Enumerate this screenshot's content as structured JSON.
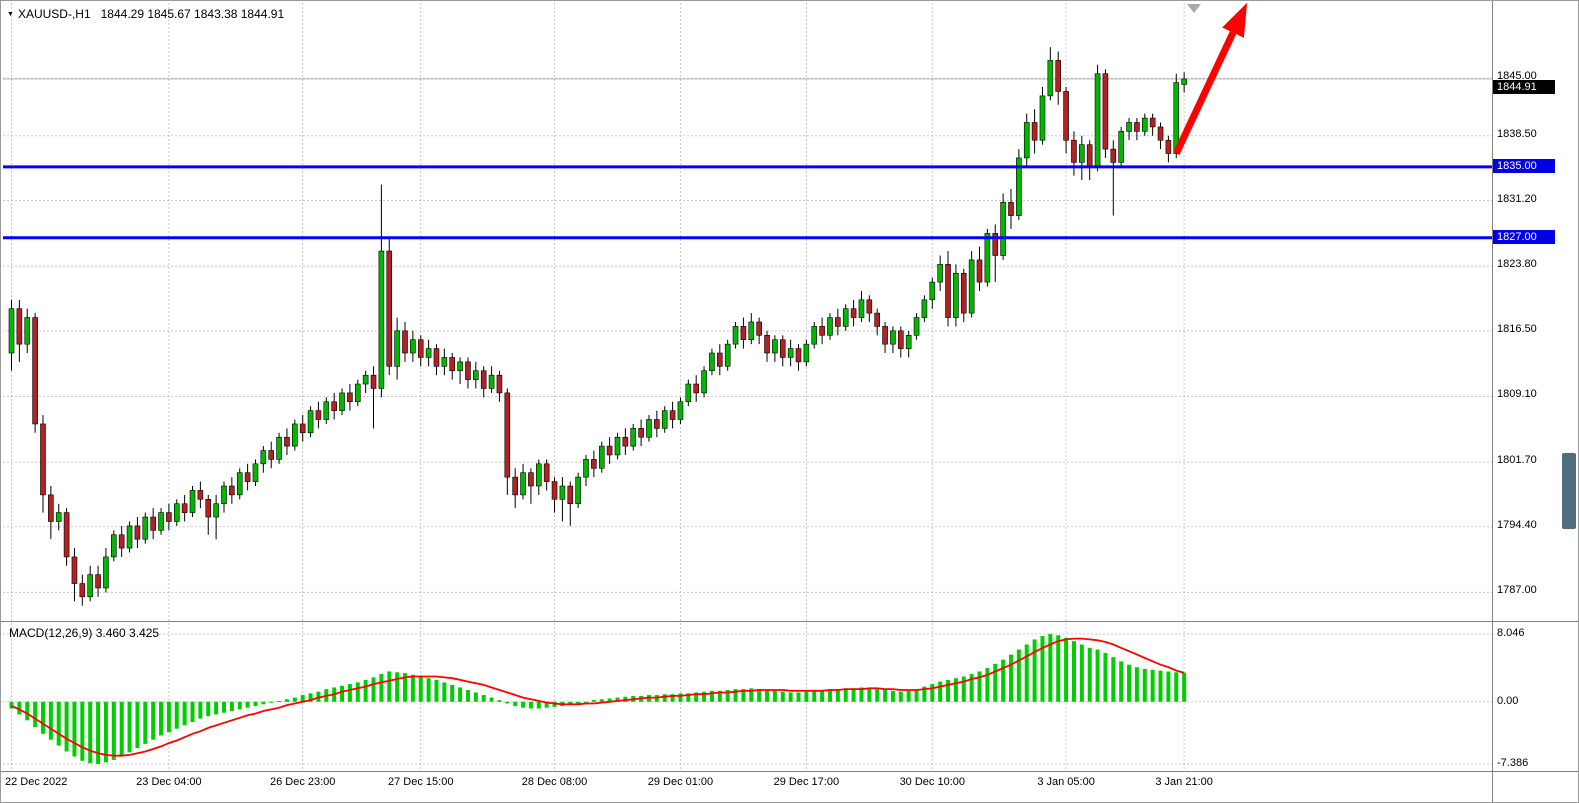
{
  "header": {
    "symbol_timeframe": "XAUUSD-,H1",
    "ohlc_text": "1844.29 1845.67 1843.38 1844.91"
  },
  "price_axis": {
    "ticks": [
      "1845.00",
      "1838.50",
      "1831.20",
      "1823.80",
      "1816.50",
      "1809.10",
      "1801.70",
      "1794.40",
      "1787.00"
    ],
    "current_price_label": "1844.91",
    "level_tags": [
      "1835.00",
      "1827.00"
    ]
  },
  "macd_panel": {
    "label": "MACD(12,26,9) 3.460 3.425",
    "ticks": [
      "8.046",
      "0.00",
      "-7.386"
    ]
  },
  "colors": {
    "background": "#FFFFFF",
    "grid": "#C8C8C8",
    "bull": "#00B800",
    "bear": "#B22222",
    "wick": "#000000",
    "hline": "#0000FF",
    "macd_histogram": "#00CE00",
    "macd_signal": "#FF0000",
    "arrow": "#FF0000",
    "current_price_line": "#B8B8B8",
    "current_price_tag_bg": "#000000",
    "level_tag_bg": "#0000E6",
    "separator": "#808080",
    "scrollbar_thumb": "#4E6E7E",
    "shift_marker": "#AAAAAA"
  },
  "chart_data": {
    "type": "candlestick",
    "symbol": "XAUUSD-",
    "timeframe": "H1",
    "title": "XAUUSD-,H1",
    "ylim": [
      1784.0,
      1852.8
    ],
    "y_ticks": [
      1845.0,
      1838.5,
      1831.2,
      1823.8,
      1816.5,
      1809.1,
      1801.7,
      1794.4,
      1787.0
    ],
    "current_price": 1844.91,
    "last_bar": {
      "open": 1844.29,
      "high": 1845.67,
      "low": 1843.38,
      "close": 1844.91
    },
    "hlines": [
      {
        "price": 1835.0,
        "label": "1835.00"
      },
      {
        "price": 1827.0,
        "label": "1827.00"
      }
    ],
    "time_labels": [
      {
        "i": 0,
        "t": "22 Dec 2022"
      },
      {
        "i": 20,
        "t": "23 Dec 04:00"
      },
      {
        "i": 37,
        "t": "26 Dec 23:00"
      },
      {
        "i": 52,
        "t": "27 Dec 15:00"
      },
      {
        "i": 69,
        "t": "28 Dec 08:00"
      },
      {
        "i": 85,
        "t": "29 Dec 01:00"
      },
      {
        "i": 101,
        "t": "29 Dec 17:00"
      },
      {
        "i": 117,
        "t": "30 Dec 10:00"
      },
      {
        "i": 134,
        "t": "3 Jan 05:00"
      },
      {
        "i": 149,
        "t": "3 Jan 21:00"
      }
    ],
    "annotations": [
      {
        "type": "arrow",
        "from": {
          "bar": 148,
          "price": 1836.5
        },
        "to": {
          "bar": 157,
          "price": 1853.5
        }
      }
    ],
    "ohlc": [
      [
        1814,
        1820,
        1812,
        1819
      ],
      [
        1819,
        1820,
        1813,
        1815
      ],
      [
        1815,
        1819,
        1814,
        1818
      ],
      [
        1818,
        1818.5,
        1805,
        1806
      ],
      [
        1806,
        1807,
        1796,
        1798
      ],
      [
        1798,
        1799,
        1793,
        1795
      ],
      [
        1795,
        1797,
        1794,
        1796
      ],
      [
        1796,
        1796.5,
        1790,
        1791
      ],
      [
        1791,
        1792,
        1786,
        1788
      ],
      [
        1788,
        1789,
        1785.5,
        1786.5
      ],
      [
        1786.5,
        1790,
        1786,
        1789
      ],
      [
        1789,
        1790,
        1786.5,
        1787.5
      ],
      [
        1787.5,
        1792,
        1787,
        1791
      ],
      [
        1791,
        1794,
        1790.5,
        1793.5
      ],
      [
        1793.5,
        1794.5,
        1791,
        1792
      ],
      [
        1792,
        1795,
        1791.5,
        1794.5
      ],
      [
        1794.5,
        1795.5,
        1792,
        1793
      ],
      [
        1793,
        1796,
        1792.5,
        1795.5
      ],
      [
        1795.5,
        1796.5,
        1793,
        1794
      ],
      [
        1794,
        1796.5,
        1793.5,
        1796
      ],
      [
        1796,
        1797,
        1794,
        1795
      ],
      [
        1795,
        1797.5,
        1794.5,
        1797
      ],
      [
        1797,
        1798,
        1795,
        1796
      ],
      [
        1796,
        1799,
        1795.5,
        1798.5
      ],
      [
        1798.5,
        1799.5,
        1796.5,
        1797.5
      ],
      [
        1797.5,
        1798,
        1793.5,
        1795.5
      ],
      [
        1795.5,
        1798,
        1793,
        1797
      ],
      [
        1797,
        1799.5,
        1796,
        1799
      ],
      [
        1799,
        1800,
        1797,
        1798
      ],
      [
        1798,
        1801,
        1797.5,
        1800.5
      ],
      [
        1800.5,
        1801.5,
        1798.5,
        1799.5
      ],
      [
        1799.5,
        1802,
        1799,
        1801.5
      ],
      [
        1801.5,
        1803.5,
        1800.5,
        1803
      ],
      [
        1803,
        1804,
        1801,
        1802
      ],
      [
        1802,
        1805,
        1801.5,
        1804.5
      ],
      [
        1804.5,
        1805.5,
        1802.5,
        1803.5
      ],
      [
        1803.5,
        1806.5,
        1803,
        1806
      ],
      [
        1806,
        1807,
        1804,
        1805
      ],
      [
        1805,
        1808,
        1804.5,
        1807.5
      ],
      [
        1807.5,
        1808.5,
        1805.5,
        1806.5
      ],
      [
        1806.5,
        1809,
        1806,
        1808.5
      ],
      [
        1808.5,
        1809.5,
        1806.5,
        1807.5
      ],
      [
        1807.5,
        1810,
        1807,
        1809.5
      ],
      [
        1809.5,
        1810.5,
        1807.5,
        1808.5
      ],
      [
        1808.5,
        1811,
        1808,
        1810.5
      ],
      [
        1810.5,
        1812,
        1809.5,
        1811.5
      ],
      [
        1811.5,
        1812.5,
        1805.5,
        1810
      ],
      [
        1810,
        1833,
        1809,
        1825.5
      ],
      [
        1825.5,
        1827,
        1811.5,
        1812.5
      ],
      [
        1812.5,
        1818,
        1811,
        1816.5
      ],
      [
        1816.5,
        1817.5,
        1813,
        1814
      ],
      [
        1814,
        1816.5,
        1813,
        1815.5
      ],
      [
        1815.5,
        1816,
        1812.5,
        1813.5
      ],
      [
        1813.5,
        1815.5,
        1812.5,
        1814.5
      ],
      [
        1814.5,
        1815,
        1811.5,
        1812.5
      ],
      [
        1812.5,
        1814.5,
        1811.5,
        1813.5
      ],
      [
        1813.5,
        1814,
        1811,
        1812
      ],
      [
        1812,
        1813.5,
        1810.5,
        1813
      ],
      [
        1813,
        1813.5,
        1810,
        1811
      ],
      [
        1811,
        1813,
        1810,
        1812
      ],
      [
        1812,
        1812.5,
        1809,
        1810
      ],
      [
        1810,
        1812.5,
        1809.5,
        1811.5
      ],
      [
        1811.5,
        1812,
        1808.5,
        1809.5
      ],
      [
        1809.5,
        1810,
        1798,
        1800
      ],
      [
        1800,
        1801,
        1796.5,
        1798
      ],
      [
        1798,
        1801.5,
        1797.5,
        1800.5
      ],
      [
        1800.5,
        1801,
        1797,
        1799
      ],
      [
        1799,
        1802,
        1798,
        1801.5
      ],
      [
        1801.5,
        1802,
        1798.5,
        1799.5
      ],
      [
        1799.5,
        1800,
        1796,
        1797.5
      ],
      [
        1797.5,
        1800,
        1795,
        1799
      ],
      [
        1799,
        1799.5,
        1794.5,
        1797
      ],
      [
        1797,
        1800.5,
        1796.5,
        1800
      ],
      [
        1800,
        1802.5,
        1799,
        1802
      ],
      [
        1802,
        1803,
        1800,
        1801
      ],
      [
        1801,
        1804,
        1800.5,
        1803.5
      ],
      [
        1803.5,
        1804.5,
        1801.5,
        1802.5
      ],
      [
        1802.5,
        1805,
        1802,
        1804.5
      ],
      [
        1804.5,
        1805.5,
        1802.5,
        1803.5
      ],
      [
        1803.5,
        1806,
        1803,
        1805.5
      ],
      [
        1805.5,
        1806.5,
        1803.5,
        1804.5
      ],
      [
        1804.5,
        1807,
        1804,
        1806.5
      ],
      [
        1806.5,
        1807.5,
        1804.5,
        1805.5
      ],
      [
        1805.5,
        1808,
        1805,
        1807.5
      ],
      [
        1807.5,
        1808.5,
        1805.5,
        1806.5
      ],
      [
        1806.5,
        1809,
        1806,
        1808.5
      ],
      [
        1808.5,
        1811,
        1808,
        1810.5
      ],
      [
        1810.5,
        1811.5,
        1808.5,
        1809.5
      ],
      [
        1809.5,
        1812.5,
        1809,
        1812
      ],
      [
        1812,
        1814.5,
        1811.5,
        1814
      ],
      [
        1814,
        1815,
        1811.5,
        1812.5
      ],
      [
        1812.5,
        1815.5,
        1812,
        1815
      ],
      [
        1815,
        1817.5,
        1814.5,
        1817
      ],
      [
        1817,
        1818,
        1814.5,
        1815.5
      ],
      [
        1815.5,
        1818.5,
        1815,
        1817.5
      ],
      [
        1817.5,
        1818,
        1815,
        1816
      ],
      [
        1816,
        1816.5,
        1813,
        1814
      ],
      [
        1814,
        1816,
        1813,
        1815.5
      ],
      [
        1815.5,
        1816,
        1812.5,
        1813.5
      ],
      [
        1813.5,
        1815.5,
        1812.5,
        1814.5
      ],
      [
        1814.5,
        1815,
        1812,
        1813
      ],
      [
        1813,
        1815.5,
        1812.5,
        1815
      ],
      [
        1815,
        1817.5,
        1814.5,
        1817
      ],
      [
        1817,
        1818,
        1815,
        1816
      ],
      [
        1816,
        1818.5,
        1815.5,
        1818
      ],
      [
        1818,
        1819,
        1816,
        1817
      ],
      [
        1817,
        1819.5,
        1816.5,
        1819
      ],
      [
        1819,
        1820,
        1817,
        1818
      ],
      [
        1818,
        1821,
        1817.5,
        1820
      ],
      [
        1820,
        1820.5,
        1817.5,
        1818.5
      ],
      [
        1818.5,
        1819,
        1816,
        1817
      ],
      [
        1817,
        1817.5,
        1814,
        1815
      ],
      [
        1815,
        1817,
        1814,
        1816.5
      ],
      [
        1816.5,
        1817,
        1813.5,
        1814.5
      ],
      [
        1814.5,
        1816.5,
        1813.5,
        1816
      ],
      [
        1816,
        1818.5,
        1815.5,
        1818
      ],
      [
        1818,
        1820.5,
        1817.5,
        1820
      ],
      [
        1820,
        1822.5,
        1819,
        1822
      ],
      [
        1822,
        1825,
        1821,
        1824
      ],
      [
        1824,
        1825.5,
        1817,
        1818
      ],
      [
        1818,
        1824,
        1817,
        1823
      ],
      [
        1823,
        1823.5,
        1817.5,
        1818.5
      ],
      [
        1818.5,
        1825.5,
        1818,
        1824.5
      ],
      [
        1824.5,
        1826,
        1821,
        1822
      ],
      [
        1822,
        1828,
        1821.5,
        1827.5
      ],
      [
        1827.5,
        1828.5,
        1822,
        1825
      ],
      [
        1825,
        1832,
        1824.5,
        1831
      ],
      [
        1831,
        1832.5,
        1828,
        1829.5
      ],
      [
        1829.5,
        1837,
        1829,
        1836
      ],
      [
        1836,
        1841,
        1835,
        1840
      ],
      [
        1840,
        1841.5,
        1836.5,
        1838
      ],
      [
        1838,
        1844,
        1837.5,
        1843
      ],
      [
        1843,
        1848.5,
        1842.5,
        1847
      ],
      [
        1847,
        1848,
        1842,
        1843.5
      ],
      [
        1843.5,
        1844,
        1836.5,
        1838
      ],
      [
        1838,
        1839,
        1834,
        1835.5
      ],
      [
        1835.5,
        1838.5,
        1833.5,
        1837.5
      ],
      [
        1837.5,
        1838,
        1833.5,
        1835
      ],
      [
        1835,
        1846.5,
        1834.5,
        1845.5
      ],
      [
        1845.5,
        1846,
        1836,
        1837
      ],
      [
        1837,
        1838,
        1829.5,
        1835.5
      ],
      [
        1835.5,
        1839.5,
        1835,
        1839
      ],
      [
        1839,
        1840.5,
        1838,
        1840
      ],
      [
        1840,
        1840.5,
        1838,
        1839
      ],
      [
        1839,
        1841,
        1838.5,
        1840.5
      ],
      [
        1840.5,
        1841,
        1838.5,
        1839.5
      ],
      [
        1839.5,
        1840,
        1837,
        1838
      ],
      [
        1838,
        1838.5,
        1835.5,
        1836.5
      ],
      [
        1836.5,
        1845.5,
        1836,
        1844.5
      ],
      [
        1844.29,
        1845.67,
        1843.38,
        1844.91
      ]
    ],
    "macd": {
      "params": "12,26,9",
      "last_macd": 3.46,
      "last_signal": 3.425,
      "y_ticks": [
        8.046,
        0.0,
        -7.386
      ],
      "histogram": [
        -0.8,
        -1.5,
        -2.2,
        -3.0,
        -3.8,
        -4.5,
        -5.2,
        -5.9,
        -6.5,
        -7.0,
        -7.3,
        -7.39,
        -7.2,
        -6.9,
        -6.5,
        -6.0,
        -5.5,
        -5.0,
        -4.5,
        -4.0,
        -3.6,
        -3.2,
        -2.8,
        -2.4,
        -2.0,
        -1.7,
        -1.5,
        -1.3,
        -1.1,
        -0.9,
        -0.7,
        -0.5,
        -0.3,
        -0.1,
        0.1,
        0.3,
        0.5,
        0.8,
        1.0,
        1.2,
        1.5,
        1.7,
        1.9,
        2.1,
        2.3,
        2.6,
        2.9,
        3.3,
        3.6,
        3.5,
        3.4,
        3.2,
        3.0,
        2.8,
        2.6,
        2.3,
        2.0,
        1.7,
        1.4,
        1.1,
        0.8,
        0.5,
        0.2,
        -0.2,
        -0.5,
        -0.7,
        -0.8,
        -0.8,
        -0.7,
        -0.6,
        -0.5,
        -0.4,
        -0.2,
        0.0,
        0.2,
        0.3,
        0.4,
        0.5,
        0.6,
        0.7,
        0.7,
        0.8,
        0.8,
        0.9,
        0.9,
        1.0,
        1.0,
        1.1,
        1.2,
        1.3,
        1.3,
        1.4,
        1.5,
        1.5,
        1.6,
        1.5,
        1.4,
        1.3,
        1.2,
        1.1,
        1.1,
        1.2,
        1.3,
        1.4,
        1.5,
        1.5,
        1.6,
        1.6,
        1.7,
        1.6,
        1.5,
        1.4,
        1.3,
        1.2,
        1.3,
        1.5,
        1.8,
        2.1,
        2.4,
        2.6,
        2.8,
        3.0,
        3.3,
        3.6,
        4.0,
        4.5,
        5.0,
        5.6,
        6.2,
        6.8,
        7.4,
        7.8,
        8.05,
        7.9,
        7.6,
        7.2,
        6.8,
        6.4,
        6.2,
        5.8,
        5.3,
        4.8,
        4.4,
        4.1,
        3.9,
        3.8,
        3.7,
        3.6,
        3.5,
        3.46
      ],
      "signal": [
        -0.5,
        -0.9,
        -1.4,
        -2.0,
        -2.6,
        -3.2,
        -3.8,
        -4.4,
        -4.9,
        -5.4,
        -5.8,
        -6.1,
        -6.3,
        -6.4,
        -6.4,
        -6.3,
        -6.1,
        -5.9,
        -5.6,
        -5.3,
        -4.9,
        -4.6,
        -4.2,
        -3.8,
        -3.5,
        -3.1,
        -2.8,
        -2.5,
        -2.2,
        -1.9,
        -1.6,
        -1.4,
        -1.1,
        -0.9,
        -0.7,
        -0.4,
        -0.2,
        0.0,
        0.2,
        0.5,
        0.7,
        0.9,
        1.2,
        1.4,
        1.6,
        1.8,
        2.1,
        2.3,
        2.5,
        2.7,
        2.9,
        3.0,
        3.0,
        3.0,
        3.0,
        2.9,
        2.8,
        2.6,
        2.4,
        2.2,
        2.0,
        1.7,
        1.4,
        1.1,
        0.8,
        0.5,
        0.3,
        0.1,
        -0.1,
        -0.2,
        -0.3,
        -0.3,
        -0.3,
        -0.2,
        -0.2,
        -0.1,
        0.0,
        0.1,
        0.2,
        0.3,
        0.4,
        0.5,
        0.5,
        0.6,
        0.7,
        0.7,
        0.8,
        0.9,
        0.9,
        1.0,
        1.1,
        1.1,
        1.2,
        1.3,
        1.3,
        1.4,
        1.4,
        1.4,
        1.4,
        1.3,
        1.3,
        1.3,
        1.3,
        1.3,
        1.4,
        1.4,
        1.5,
        1.5,
        1.5,
        1.6,
        1.6,
        1.5,
        1.5,
        1.4,
        1.4,
        1.4,
        1.5,
        1.6,
        1.8,
        2.0,
        2.2,
        2.4,
        2.7,
        2.9,
        3.2,
        3.6,
        4.0,
        4.4,
        4.9,
        5.4,
        5.9,
        6.4,
        6.8,
        7.2,
        7.4,
        7.5,
        7.5,
        7.4,
        7.3,
        7.1,
        6.8,
        6.4,
        6.0,
        5.6,
        5.2,
        4.8,
        4.4,
        4.1,
        3.7,
        3.43
      ]
    }
  }
}
